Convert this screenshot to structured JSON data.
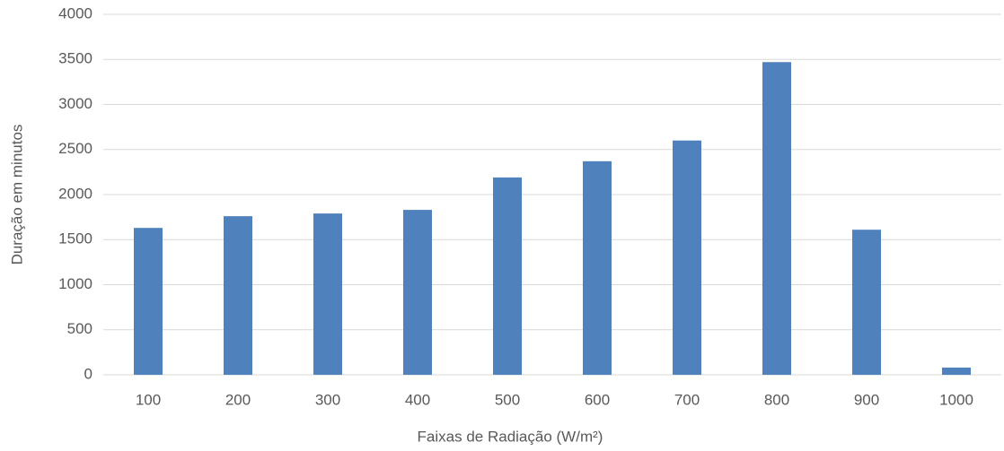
{
  "chart_data": {
    "type": "bar",
    "x_label": "Faixas de Radiação (W/m²)",
    "y_label": "Duração em minutos",
    "categories": [
      "100",
      "200",
      "300",
      "400",
      "500",
      "600",
      "700",
      "800",
      "900",
      "1000"
    ],
    "values": [
      1630,
      1760,
      1790,
      1830,
      2190,
      2370,
      2600,
      3470,
      1610,
      80
    ],
    "color": "#4f81bd",
    "ylim": [
      0,
      4000
    ],
    "yticks": [
      0,
      500,
      1000,
      1500,
      2000,
      2500,
      3000,
      3500,
      4000
    ],
    "grid": true
  }
}
